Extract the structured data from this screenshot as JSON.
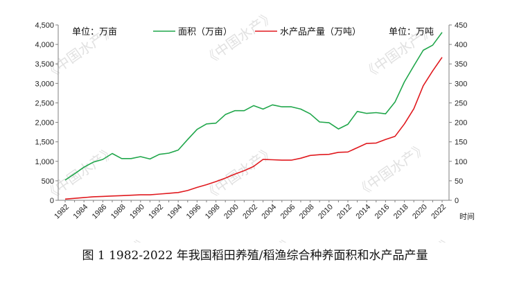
{
  "caption": "图 1 1982-2022 年我国稻田养殖/稻渔综合种养面积和水产品产量",
  "watermark": "《中国水产》",
  "chart_data": {
    "type": "line",
    "x": [
      1982,
      1983,
      1984,
      1985,
      1986,
      1987,
      1988,
      1989,
      1990,
      1991,
      1992,
      1993,
      1994,
      1995,
      1996,
      1997,
      1998,
      1999,
      2000,
      2001,
      2002,
      2003,
      2004,
      2005,
      2006,
      2007,
      2008,
      2009,
      2010,
      2011,
      2012,
      2013,
      2014,
      2015,
      2016,
      2017,
      2018,
      2019,
      2020,
      2021,
      2022
    ],
    "x_tick_labels": [
      "1982",
      "1984",
      "1986",
      "1988",
      "1990",
      "1992",
      "1994",
      "1996",
      "1998",
      "2000",
      "2002",
      "2004",
      "2006",
      "2008",
      "2010",
      "2012",
      "2014",
      "2016",
      "2018",
      "2020",
      "2022"
    ],
    "xlabel": "时间",
    "left_axis": {
      "unit_label": "单位：万亩",
      "ylim": [
        0,
        4500
      ],
      "ticks": [
        "0",
        "500",
        "1,000",
        "1,500",
        "2,000",
        "2,500",
        "3,000",
        "3,500",
        "4,000",
        "4,500"
      ]
    },
    "right_axis": {
      "unit_label": "单位：万吨",
      "ylim": [
        0,
        450
      ],
      "ticks": [
        "0",
        "50",
        "100",
        "150",
        "200",
        "250",
        "300",
        "350",
        "400",
        "450"
      ]
    },
    "grid": false,
    "legend_position": "top-center",
    "series": [
      {
        "name": "面积（万亩）",
        "axis": "left",
        "color": "#1fa64a",
        "values": [
          520,
          680,
          850,
          980,
          1050,
          1200,
          1070,
          1070,
          1120,
          1060,
          1180,
          1210,
          1290,
          1560,
          1820,
          1960,
          1980,
          2200,
          2300,
          2300,
          2430,
          2340,
          2450,
          2400,
          2400,
          2340,
          2220,
          2010,
          1990,
          1830,
          1950,
          2280,
          2230,
          2250,
          2220,
          2520,
          3040,
          3450,
          3850,
          3980,
          4310
        ]
      },
      {
        "name": "水产品产量（万吨）",
        "axis": "right",
        "color": "#e0191e",
        "values": [
          3,
          5,
          7,
          9,
          10,
          11,
          12,
          13,
          14,
          14,
          16,
          18,
          20,
          25,
          33,
          40,
          48,
          57,
          67,
          76,
          87,
          105,
          104,
          103,
          103,
          108,
          115,
          117,
          118,
          123,
          124,
          135,
          146,
          147,
          156,
          164,
          196,
          235,
          294,
          332,
          367
        ]
      }
    ]
  }
}
